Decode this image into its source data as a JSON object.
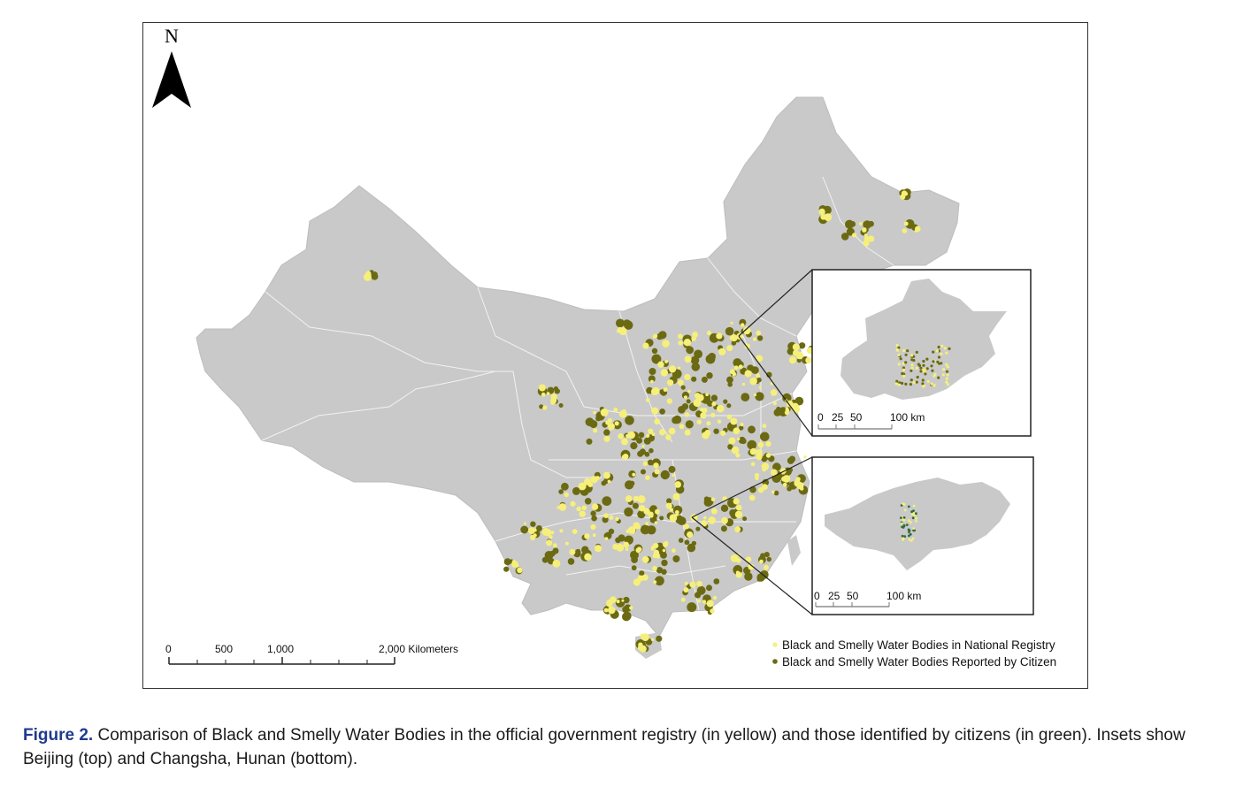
{
  "map": {
    "north_arrow": {
      "label": "N"
    },
    "scale_bar": {
      "ticks": [
        "0",
        "500",
        "1,000",
        "2,000 Kilometers"
      ]
    },
    "legend": {
      "items": [
        {
          "label": "Black and Smelly Water Bodies in National Registry",
          "color": "#f6f07a",
          "icon": "yellow-dot-icon"
        },
        {
          "label": "Black and Smelly Water Bodies Reported by Citizen",
          "color": "#6b6a12",
          "icon": "olive-dot-icon"
        }
      ]
    },
    "colors": {
      "land": "#c9c9c9",
      "boundary": "#f2f2f2",
      "registry_dot": "#f6f07a",
      "citizen_dot": "#6b6a12"
    },
    "insets": [
      {
        "name": "Beijing",
        "scale_ticks": [
          "0",
          "25",
          "50",
          "100 km"
        ]
      },
      {
        "name": "Changsha, Hunan",
        "scale_ticks": [
          "0",
          "25",
          "50",
          "100 km"
        ]
      }
    ]
  },
  "caption": {
    "figure_label": "Figure 2.",
    "text": " Comparison of Black and Smelly Water Bodies in the official government registry (in yellow) and those identified by citizens (in green). Insets show Beijing (top) and Changsha, Hunan (bottom)."
  }
}
